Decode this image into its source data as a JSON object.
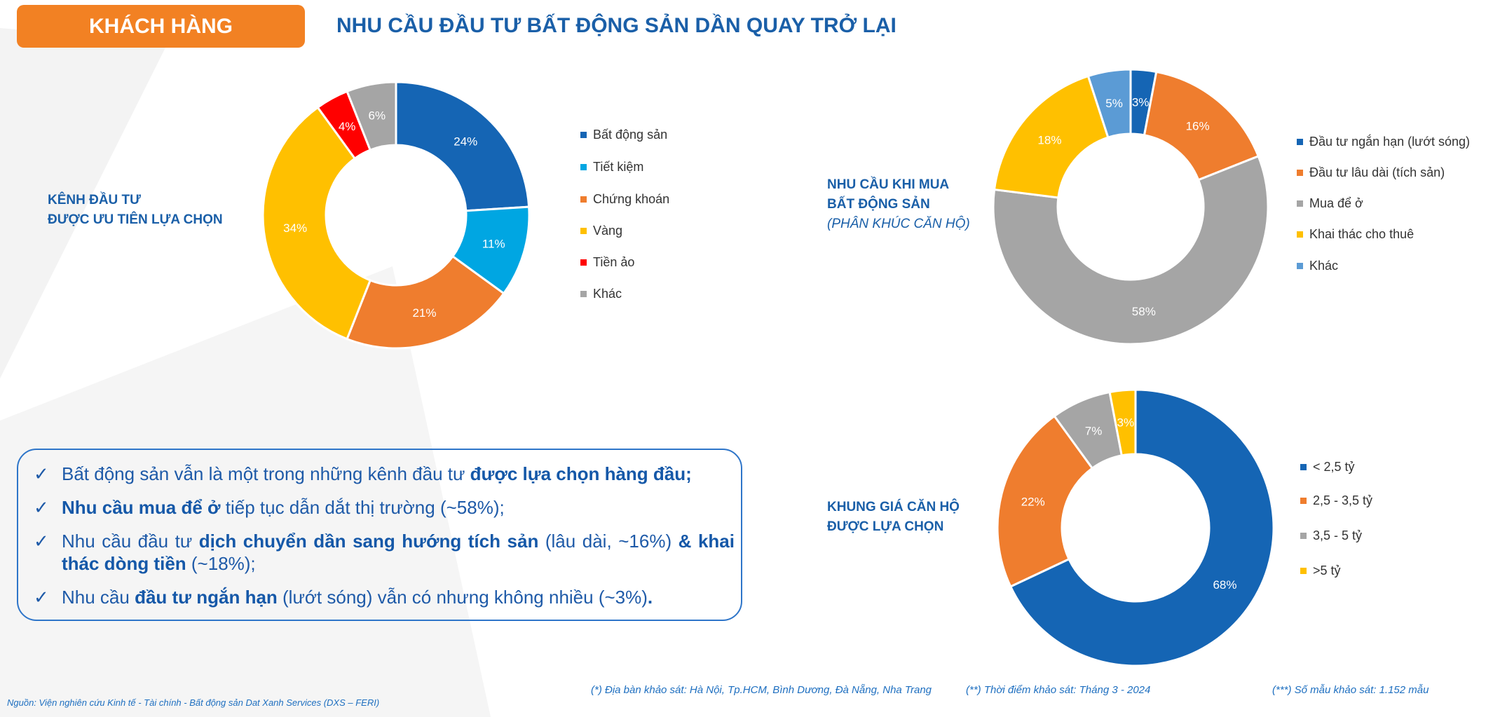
{
  "header": {
    "section_label": "KHÁCH HÀNG",
    "title": "NHU CẦU ĐẦU TƯ BẤT ĐỘNG SẢN DẦN QUAY TRỞ LẠI"
  },
  "chart_data": [
    {
      "type": "pie",
      "donut": true,
      "title": "KÊNH ĐẦU TƯ ĐƯỢC ƯU TIÊN LỰA CHỌN",
      "title_lines": [
        "KÊNH ĐẦU TƯ",
        "ĐƯỢC ƯU TIÊN LỰA CHỌN"
      ],
      "legend_position": "right",
      "categories": [
        "Bất động sản",
        "Tiết kiệm",
        "Chứng khoán",
        "Vàng",
        "Tiền ảo",
        "Khác"
      ],
      "values": [
        24,
        11,
        21,
        34,
        4,
        6
      ],
      "labels": [
        "24%",
        "11%",
        "21%",
        "34%",
        "4%",
        "6%"
      ],
      "colors": [
        "#1565b4",
        "#00a6e2",
        "#ef7d2e",
        "#ffc000",
        "#ff0000",
        "#a5a5a5"
      ]
    },
    {
      "type": "pie",
      "donut": true,
      "title": "NHU CẦU KHI MUA BẤT ĐỘNG SẢN (PHÂN KHÚC CĂN HỘ)",
      "title_lines": [
        "NHU CẦU KHI MUA",
        "BẤT ĐỘNG SẢN"
      ],
      "subtitle": "(PHÂN KHÚC CĂN HỘ)",
      "legend_position": "right",
      "categories": [
        "Đầu tư ngắn hạn (lướt sóng)",
        "Đầu tư lâu dài (tích sản)",
        "Mua để ở",
        "Khai thác cho thuê",
        "Khác"
      ],
      "values": [
        3,
        16,
        58,
        18,
        5
      ],
      "labels": [
        "3%",
        "16%",
        "58%",
        "18%",
        "5%"
      ],
      "colors": [
        "#1565b4",
        "#ef7d2e",
        "#a5a5a5",
        "#ffc000",
        "#5b9bd5"
      ]
    },
    {
      "type": "pie",
      "donut": true,
      "title": "KHUNG GIÁ CĂN HỘ ĐƯỢC LỰA CHỌN",
      "title_lines": [
        "KHUNG GIÁ CĂN HỘ",
        "ĐƯỢC LỰA CHỌN"
      ],
      "legend_position": "right",
      "categories": [
        "< 2,5 tỷ",
        "2,5 - 3,5 tỷ",
        "3,5 - 5 tỷ",
        ">5 tỷ"
      ],
      "values": [
        68,
        22,
        7,
        3
      ],
      "labels": [
        "68%",
        "22%",
        "7%",
        "3%"
      ],
      "colors": [
        "#1565b4",
        "#ef7d2e",
        "#a5a5a5",
        "#ffc000"
      ]
    }
  ],
  "bullets": [
    [
      {
        "t": "Bất động sản vẫn là một trong những kênh đầu tư ",
        "b": false
      },
      {
        "t": "được lựa chọn hàng đầu;",
        "b": true
      }
    ],
    [
      {
        "t": "Nhu cầu mua để ở",
        "b": true
      },
      {
        "t": " tiếp tục dẫn dắt thị trường (~58%);",
        "b": false
      }
    ],
    [
      {
        "t": "Nhu cầu đầu tư ",
        "b": false
      },
      {
        "t": "dịch chuyển dần sang hướng tích sản",
        "b": true
      },
      {
        "t": " (lâu dài, ~16%) ",
        "b": false
      },
      {
        "t": "& khai thác dòng tiền",
        "b": true
      },
      {
        "t": " (~18%);",
        "b": false
      }
    ],
    [
      {
        "t": "Nhu cầu ",
        "b": false
      },
      {
        "t": "đầu tư ngắn hạn",
        "b": true
      },
      {
        "t": " (lướt sóng) vẫn có nhưng không nhiều (~3%)",
        "b": false
      },
      {
        "t": ".",
        "b": true
      }
    ]
  ],
  "check_icon": "✓",
  "footnotes": {
    "location": "(*) Địa bàn khảo sát: Hà Nội, Tp.HCM, Bình Dương, Đà Nẵng, Nha Trang",
    "time": "(**) Thời điểm khảo sát: Tháng 3 - 2024",
    "sample": "(***) Số mẫu khảo sát: 1.152 mẫu",
    "source": "Nguồn: Viện nghiên cứu Kinh tế - Tài chính - Bất động sản Dat Xanh Services (DXS – FERI)"
  }
}
